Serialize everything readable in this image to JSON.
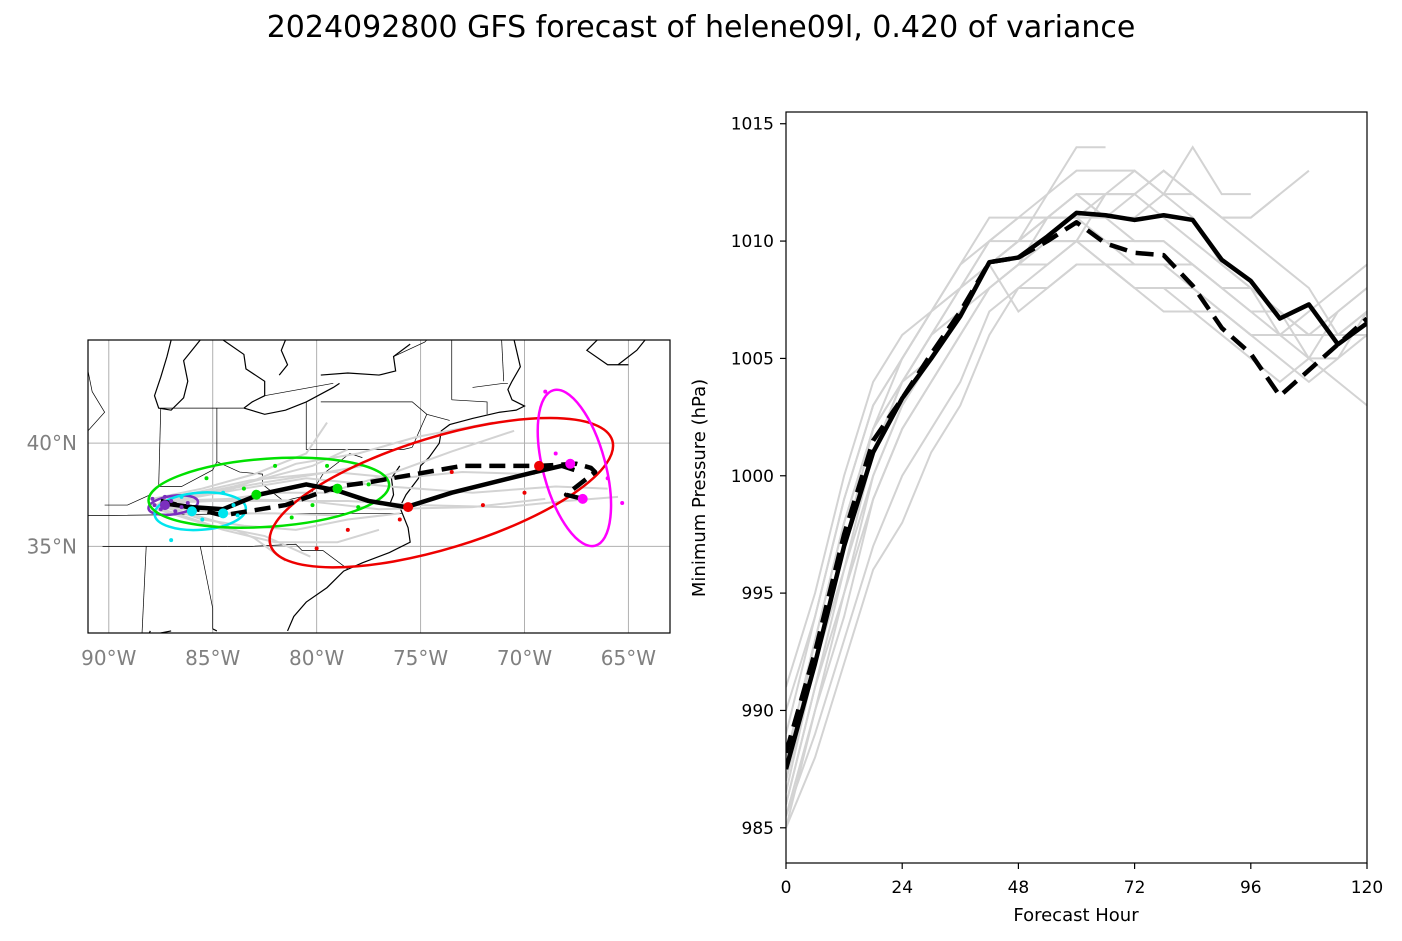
{
  "title": "2024092800 GFS forecast of helene09l, 0.420 of variance",
  "chart_data": [
    {
      "type": "map-track",
      "lon_range": [
        -91,
        -63
      ],
      "lat_range": [
        30.8,
        45
      ],
      "x_ticks": [
        -90,
        -85,
        -80,
        -75,
        -70,
        -65
      ],
      "x_tick_labels": [
        "90°W",
        "85°W",
        "80°W",
        "75°W",
        "70°W",
        "65°W"
      ],
      "y_ticks": [
        35,
        40
      ],
      "y_tick_labels": [
        "35°N",
        "40°N"
      ],
      "grid": true,
      "colors": {
        "track": "#000000",
        "ensemble": "#d3d3d3",
        "purple": "#7b2fbe",
        "cyan": "#00e5ee",
        "green": "#00e000",
        "red": "#ee0000",
        "magenta": "#ff00ff"
      },
      "solid_track": [
        [
          -87.5,
          37.1
        ],
        [
          -86.0,
          36.9
        ],
        [
          -84.5,
          36.8
        ],
        [
          -82.8,
          37.5
        ],
        [
          -80.5,
          38.0
        ],
        [
          -79.0,
          37.7
        ],
        [
          -77.5,
          37.2
        ],
        [
          -75.7,
          36.9
        ],
        [
          -73.5,
          37.6
        ],
        [
          -69.5,
          38.6
        ],
        [
          -68.2,
          38.9
        ],
        [
          -67.6,
          38.7
        ]
      ],
      "dashed_track": [
        [
          -87.5,
          37.2
        ],
        [
          -86.2,
          36.9
        ],
        [
          -84.5,
          36.5
        ],
        [
          -81.5,
          37.0
        ],
        [
          -79.0,
          37.9
        ],
        [
          -77.5,
          38.1
        ],
        [
          -73.0,
          38.9
        ],
        [
          -69.3,
          38.9
        ],
        [
          -67.5,
          39.0
        ],
        [
          -66.8,
          38.8
        ],
        [
          -66.6,
          38.6
        ],
        [
          -68.0,
          37.5
        ],
        [
          -67.2,
          37.3
        ]
      ],
      "ensemble_tracks": [
        [
          [
            -87.8,
            37.0
          ],
          [
            -85.2,
            37.6
          ],
          [
            -82.5,
            38.1
          ],
          [
            -80.0,
            38.5
          ],
          [
            -77.8,
            38.9
          ]
        ],
        [
          [
            -87.6,
            37.1
          ],
          [
            -84.0,
            37.8
          ],
          [
            -81.0,
            39.0
          ],
          [
            -78.0,
            39.5
          ],
          [
            -75.2,
            40.3
          ],
          [
            -71.5,
            41.0
          ]
        ],
        [
          [
            -87.7,
            36.9
          ],
          [
            -85.0,
            36.0
          ],
          [
            -82.5,
            35.5
          ],
          [
            -80.3,
            34.5
          ]
        ],
        [
          [
            -87.5,
            37.0
          ],
          [
            -84.8,
            36.2
          ],
          [
            -83.0,
            35.4
          ],
          [
            -81.5,
            34.3
          ]
        ],
        [
          [
            -87.4,
            37.2
          ],
          [
            -84.0,
            37.9
          ],
          [
            -80.2,
            38.9
          ],
          [
            -78.5,
            39.7
          ]
        ],
        [
          [
            -87.7,
            36.8
          ],
          [
            -84.5,
            35.8
          ],
          [
            -82.0,
            35.2
          ],
          [
            -79.0,
            35.2
          ],
          [
            -77.0,
            35.8
          ]
        ],
        [
          [
            -87.2,
            37.3
          ],
          [
            -83.2,
            38.2
          ],
          [
            -79.2,
            38.6
          ],
          [
            -76.0,
            38.3
          ],
          [
            -73.0,
            38.6
          ],
          [
            -69.5,
            38.5
          ]
        ],
        [
          [
            -87.4,
            37.1
          ],
          [
            -83.5,
            37.8
          ],
          [
            -80.5,
            38.3
          ],
          [
            -76.5,
            37.9
          ],
          [
            -72.5,
            37.6
          ],
          [
            -68.5,
            37.9
          ],
          [
            -66.0,
            37.8
          ]
        ],
        [
          [
            -87.3,
            37.2
          ],
          [
            -84.2,
            37.3
          ],
          [
            -80.5,
            37.2
          ],
          [
            -77.0,
            36.8
          ],
          [
            -72.5,
            36.9
          ],
          [
            -69.0,
            37.3
          ]
        ],
        [
          [
            -87.6,
            37.0
          ],
          [
            -85.5,
            36.3
          ],
          [
            -83.5,
            36.0
          ],
          [
            -81.0,
            35.8
          ],
          [
            -78.5,
            36.3
          ],
          [
            -76.0,
            36.6
          ]
        ],
        [
          [
            -87.5,
            37.1
          ],
          [
            -85.0,
            37.2
          ],
          [
            -82.0,
            37.6
          ],
          [
            -79.5,
            37.6
          ],
          [
            -76.5,
            38.5
          ],
          [
            -73.5,
            39.6
          ],
          [
            -70.5,
            40.6
          ]
        ],
        [
          [
            -87.9,
            37.3
          ],
          [
            -85.5,
            37.8
          ],
          [
            -83.0,
            38.5
          ],
          [
            -80.5,
            39.5
          ],
          [
            -79.5,
            41.0
          ]
        ],
        [
          [
            -87.3,
            36.9
          ],
          [
            -84.5,
            36.6
          ],
          [
            -82.0,
            36.6
          ],
          [
            -79.0,
            36.5
          ]
        ],
        [
          [
            -87.2,
            37.2
          ],
          [
            -82.8,
            37.2
          ],
          [
            -78.5,
            37.2
          ],
          [
            -75.0,
            37.0
          ],
          [
            -71.0,
            36.9
          ],
          [
            -68.0,
            37.2
          ],
          [
            -65.5,
            37.4
          ]
        ]
      ],
      "ellipses": [
        {
          "color": "#7b2fbe",
          "center": [
            -86.9,
            37.0
          ],
          "rx": 1.2,
          "ry": 0.45,
          "angle": 8
        },
        {
          "color": "#00e5ee",
          "center": [
            -85.6,
            36.7
          ],
          "rx": 2.2,
          "ry": 0.9,
          "angle": 4
        },
        {
          "color": "#00e000",
          "center": [
            -82.3,
            37.6
          ],
          "rx": 5.8,
          "ry": 1.65,
          "angle": 4
        },
        {
          "color": "#ee0000",
          "center": [
            -74.0,
            37.6
          ],
          "rx": 8.6,
          "ry": 2.7,
          "angle": 17
        },
        {
          "color": "#ff00ff",
          "center": [
            -67.6,
            38.8
          ],
          "rx": 1.5,
          "ry": 3.9,
          "angle": 15
        }
      ],
      "big_points": [
        {
          "color": "#7b2fbe",
          "lon": -87.3,
          "lat": 37.0
        },
        {
          "color": "#00e5ee",
          "lon": -86.0,
          "lat": 36.7
        },
        {
          "color": "#00e5ee",
          "lon": -84.5,
          "lat": 36.6
        },
        {
          "color": "#00e000",
          "lon": -82.9,
          "lat": 37.5
        },
        {
          "color": "#00e000",
          "lon": -79.0,
          "lat": 37.8
        },
        {
          "color": "#ee0000",
          "lon": -75.6,
          "lat": 36.9
        },
        {
          "color": "#ee0000",
          "lon": -69.3,
          "lat": 38.9
        },
        {
          "color": "#ff00ff",
          "lon": -67.8,
          "lat": 39.0
        },
        {
          "color": "#ff00ff",
          "lon": -67.2,
          "lat": 37.3
        }
      ],
      "small_points": [
        {
          "color": "#7b2fbe",
          "lon": -87.8,
          "lat": 37.0
        },
        {
          "color": "#7b2fbe",
          "lon": -87.5,
          "lat": 36.8
        },
        {
          "color": "#7b2fbe",
          "lon": -87.0,
          "lat": 37.2
        },
        {
          "color": "#7b2fbe",
          "lon": -86.5,
          "lat": 36.9
        },
        {
          "color": "#7b2fbe",
          "lon": -86.2,
          "lat": 37.1
        },
        {
          "color": "#7b2fbe",
          "lon": -87.9,
          "lat": 37.3
        },
        {
          "color": "#7b2fbe",
          "lon": -86.8,
          "lat": 36.7
        },
        {
          "color": "#7b2fbe",
          "lon": -87.3,
          "lat": 37.4
        },
        {
          "color": "#00e5ee",
          "lon": -87.0,
          "lat": 35.3
        },
        {
          "color": "#00e5ee",
          "lon": -84.0,
          "lat": 37.0
        },
        {
          "color": "#00e5ee",
          "lon": -85.5,
          "lat": 36.3
        },
        {
          "color": "#00e5ee",
          "lon": -86.5,
          "lat": 37.4
        },
        {
          "color": "#00e5ee",
          "lon": -83.8,
          "lat": 36.5
        },
        {
          "color": "#00e5ee",
          "lon": -84.5,
          "lat": 37.6
        },
        {
          "color": "#00e000",
          "lon": -85.3,
          "lat": 38.3
        },
        {
          "color": "#00e000",
          "lon": -79.5,
          "lat": 38.9
        },
        {
          "color": "#00e000",
          "lon": -78.0,
          "lat": 36.9
        },
        {
          "color": "#00e000",
          "lon": -83.5,
          "lat": 37.8
        },
        {
          "color": "#00e000",
          "lon": -80.2,
          "lat": 37.0
        },
        {
          "color": "#00e000",
          "lon": -77.5,
          "lat": 38.0
        },
        {
          "color": "#00e000",
          "lon": -82.0,
          "lat": 38.9
        },
        {
          "color": "#00e000",
          "lon": -81.2,
          "lat": 36.4
        },
        {
          "color": "#ee0000",
          "lon": -80.0,
          "lat": 34.9
        },
        {
          "color": "#ee0000",
          "lon": -72.0,
          "lat": 37.0
        },
        {
          "color": "#ee0000",
          "lon": -73.5,
          "lat": 38.6
        },
        {
          "color": "#ee0000",
          "lon": -76.0,
          "lat": 36.3
        },
        {
          "color": "#ee0000",
          "lon": -70.0,
          "lat": 37.6
        },
        {
          "color": "#ee0000",
          "lon": -78.5,
          "lat": 35.8
        },
        {
          "color": "#ff00ff",
          "lon": -69.0,
          "lat": 42.5
        },
        {
          "color": "#ff00ff",
          "lon": -66.0,
          "lat": 38.3
        },
        {
          "color": "#ff00ff",
          "lon": -65.3,
          "lat": 37.1
        },
        {
          "color": "#ff00ff",
          "lon": -68.5,
          "lat": 39.5
        }
      ]
    },
    {
      "type": "line",
      "xlabel": "Forecast Hour",
      "ylabel": "Minimum Pressure (hPa)",
      "xlim": [
        0,
        120
      ],
      "ylim": [
        983.5,
        1015.5
      ],
      "x_ticks": [
        0,
        24,
        48,
        72,
        96,
        120
      ],
      "y_ticks": [
        985,
        990,
        995,
        1000,
        1005,
        1010,
        1015
      ],
      "x": [
        0,
        6,
        12,
        18,
        24,
        30,
        36,
        42,
        48,
        54,
        60,
        66,
        72,
        78,
        84,
        90,
        96,
        102,
        108,
        114,
        120
      ],
      "series": [
        {
          "style": "solid-black",
          "values": [
            987.5,
            992,
            997,
            1001,
            1003.3,
            1005,
            1006.8,
            1009.1,
            1009.3,
            1010.2,
            1011.2,
            1011.1,
            1010.9,
            1011.1,
            1010.9,
            1009.2,
            1008.3,
            1006.7,
            1007.3,
            1005.6,
            1006.5
          ]
        },
        {
          "style": "dashed-black",
          "values": [
            988.2,
            992.5,
            997.5,
            1001.5,
            1003.3,
            1005.2,
            1007,
            1009.1,
            1009.3,
            1010,
            1010.8,
            1009.9,
            1009.5,
            1009.4,
            1008.1,
            1006.3,
            1005.2,
            1003.4,
            1004.5,
            1005.6,
            1006.7
          ]
        }
      ],
      "ensemble_series": [
        [
          985.5,
          990,
          995,
          1000,
          1003,
          1005,
          1007,
          1009,
          1010,
          1011,
          1012,
          1011,
          1012,
          1013,
          1012,
          1011,
          1011,
          1012,
          1013
        ],
        [
          986,
          991,
          996,
          1001,
          1004,
          1006,
          1008,
          1010,
          1010,
          1011,
          1012,
          1011,
          1011,
          1012,
          1014,
          1012,
          1012
        ],
        [
          987,
          992,
          997,
          1002,
          1005,
          1007,
          1008,
          1009,
          1010,
          1012,
          1013,
          1013,
          1013,
          1012,
          1011,
          1009,
          1008,
          1007,
          1005,
          1004,
          1003
        ],
        [
          988,
          993,
          998,
          1002,
          1004,
          1006,
          1008,
          1010,
          1011,
          1012,
          1014,
          1014
        ],
        [
          989,
          994,
          999,
          1003,
          1005,
          1007,
          1009,
          1010,
          1011,
          1011,
          1012,
          1012,
          1012,
          1011,
          1010,
          1009,
          1008,
          1006,
          1005,
          1005,
          1006
        ],
        [
          985,
          990,
          994,
          999,
          1002,
          1004,
          1006,
          1008,
          1009,
          1010,
          1010,
          1009,
          1008,
          1007,
          1007,
          1007,
          1006,
          1006,
          1007,
          1008,
          1009
        ],
        [
          990,
          994,
          999,
          1003,
          1005,
          1007,
          1008,
          1009,
          1010,
          1010,
          1010,
          1010,
          1009,
          1009,
          1008,
          1007,
          1006,
          1005,
          1004,
          1005,
          1007
        ],
        [
          986,
          991,
          995,
          999,
          1002,
          1004,
          1006,
          1008,
          1009,
          1011,
          1011,
          1012,
          1012,
          1013,
          1012,
          1011,
          1011,
          1012
        ],
        [
          987,
          993,
          998,
          1002,
          1004,
          1005,
          1007,
          1008,
          1009,
          1009,
          1010,
          1009,
          1008,
          1008,
          1007,
          1006,
          1005,
          1004,
          1005,
          1007,
          1008
        ],
        [
          991,
          995,
          1000,
          1004,
          1006,
          1007,
          1009,
          1011,
          1011,
          1011,
          1011,
          1010,
          1010,
          1010,
          1009,
          1008,
          1007,
          1006,
          1006,
          1006,
          1007
        ],
        [
          985.5,
          989,
          993,
          997,
          1000,
          1002,
          1004,
          1007,
          1008,
          1008,
          1009,
          1009,
          1009,
          1009,
          1009,
          1008,
          1008,
          1007,
          1006,
          1006,
          1007
        ],
        [
          986.5,
          992,
          997,
          1001,
          1004,
          1006,
          1007,
          1009,
          1010,
          1011,
          1011,
          1011,
          1010,
          1010,
          1009,
          1008,
          1007,
          1007,
          1006,
          1007,
          1008
        ],
        [
          988,
          992,
          996,
          1000,
          1003,
          1005,
          1007,
          1009,
          1007,
          1008,
          1009,
          1009,
          1008,
          1008,
          1008,
          1007,
          1006,
          1006,
          1006
        ],
        [
          985,
          988,
          992,
          996,
          998,
          1001,
          1003,
          1006,
          1008,
          1009,
          1010,
          1012,
          1013,
          1012,
          1012,
          1011,
          1010,
          1009,
          1008,
          1006,
          1006
        ]
      ]
    }
  ]
}
